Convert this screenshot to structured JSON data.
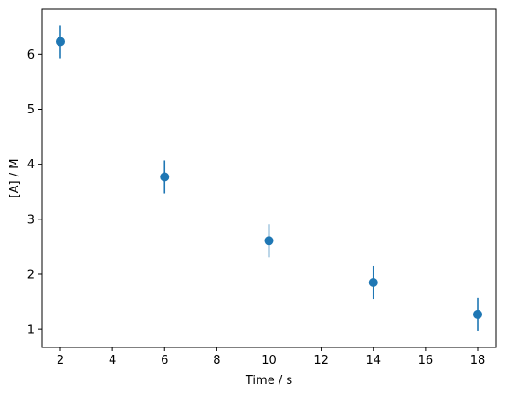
{
  "chart_data": {
    "type": "scatter",
    "title": "",
    "xlabel": "Time / s",
    "ylabel": "[A] / M",
    "xlim": [
      1.3,
      18.7
    ],
    "ylim": [
      0.67,
      6.82
    ],
    "xticks": [
      2,
      4,
      6,
      8,
      10,
      12,
      14,
      16,
      18
    ],
    "yticks": [
      1,
      2,
      3,
      4,
      5,
      6
    ],
    "grid": false,
    "legend": "none",
    "color": "#1f77b4",
    "series": [
      {
        "x": [
          2,
          6,
          10,
          14,
          18
        ],
        "y": [
          6.23,
          3.77,
          2.61,
          1.85,
          1.27
        ],
        "yerr": [
          0.3,
          0.3,
          0.3,
          0.3,
          0.3
        ]
      }
    ]
  }
}
